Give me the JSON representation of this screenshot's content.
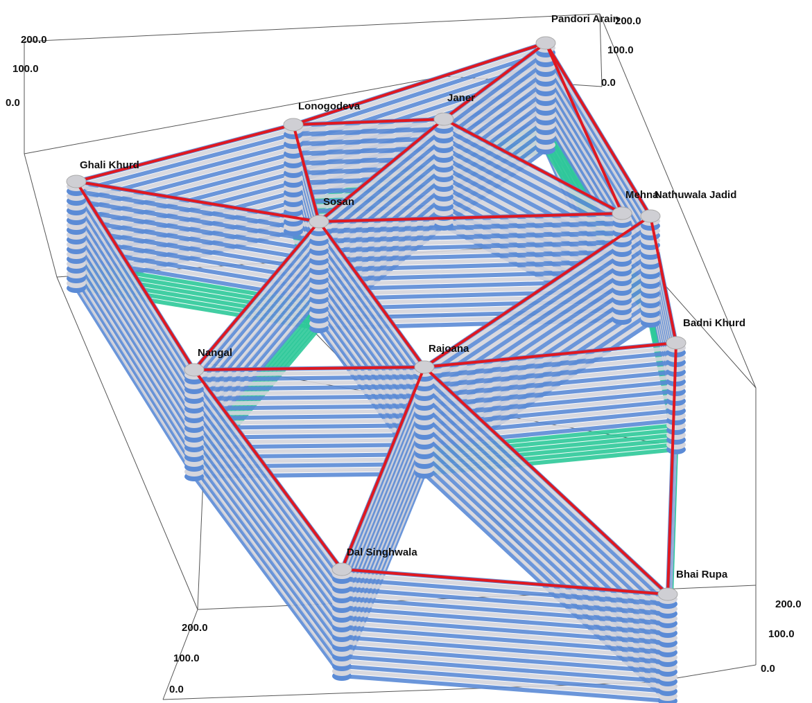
{
  "nodes": [
    {
      "id": "pandori",
      "label": "Pandori Arain"
    },
    {
      "id": "lonogodeva",
      "label": "Lonogodeva"
    },
    {
      "id": "janer",
      "label": "Janer"
    },
    {
      "id": "ghalikhurd",
      "label": "Ghali Khurd"
    },
    {
      "id": "sosan",
      "label": "Sosan"
    },
    {
      "id": "mehna",
      "label": "Mehna"
    },
    {
      "id": "nathuwala",
      "label": "Nathuwala Jadid"
    },
    {
      "id": "badnikhurd",
      "label": "Badni Khurd"
    },
    {
      "id": "nangal",
      "label": "Nangal"
    },
    {
      "id": "rajoana",
      "label": "Rajoana"
    },
    {
      "id": "dalsinghwala",
      "label": "Dal Singhwala"
    },
    {
      "id": "bhairupa",
      "label": "Bhai Rupa"
    }
  ],
  "edges": [
    [
      "pandori",
      "lonogodeva"
    ],
    [
      "pandori",
      "janer"
    ],
    [
      "pandori",
      "mehna"
    ],
    [
      "pandori",
      "nathuwala"
    ],
    [
      "lonogodeva",
      "janer"
    ],
    [
      "lonogodeva",
      "ghalikhurd"
    ],
    [
      "lonogodeva",
      "sosan"
    ],
    [
      "janer",
      "sosan"
    ],
    [
      "janer",
      "mehna"
    ],
    [
      "ghalikhurd",
      "sosan"
    ],
    [
      "ghalikhurd",
      "nangal"
    ],
    [
      "sosan",
      "mehna"
    ],
    [
      "sosan",
      "nangal"
    ],
    [
      "sosan",
      "rajoana"
    ],
    [
      "nathuwala",
      "rajoana"
    ],
    [
      "nathuwala",
      "badnikhurd"
    ],
    [
      "nangal",
      "rajoana"
    ],
    [
      "nangal",
      "dalsinghwala"
    ],
    [
      "rajoana",
      "badnikhurd"
    ],
    [
      "rajoana",
      "dalsinghwala"
    ],
    [
      "rajoana",
      "bhairupa"
    ],
    [
      "badnikhurd",
      "bhairupa"
    ],
    [
      "dalsinghwala",
      "bhairupa"
    ]
  ],
  "axes": {
    "top_left": [
      "200.0",
      "100.0",
      "0.0"
    ],
    "top_right": [
      "200.0",
      "100.0",
      "0.0"
    ],
    "bottom_left": [
      "200.0",
      "100.0",
      "0.0"
    ],
    "bottom_right": [
      "200.0",
      "100.0",
      "0.0"
    ]
  },
  "colors": {
    "route": "#e01820",
    "stack_primary": "#5b8bd6",
    "stack_secondary": "#d5d5dc",
    "stack_low": "#2ec99a",
    "node": "#cfcfd4",
    "box": "#444444"
  }
}
